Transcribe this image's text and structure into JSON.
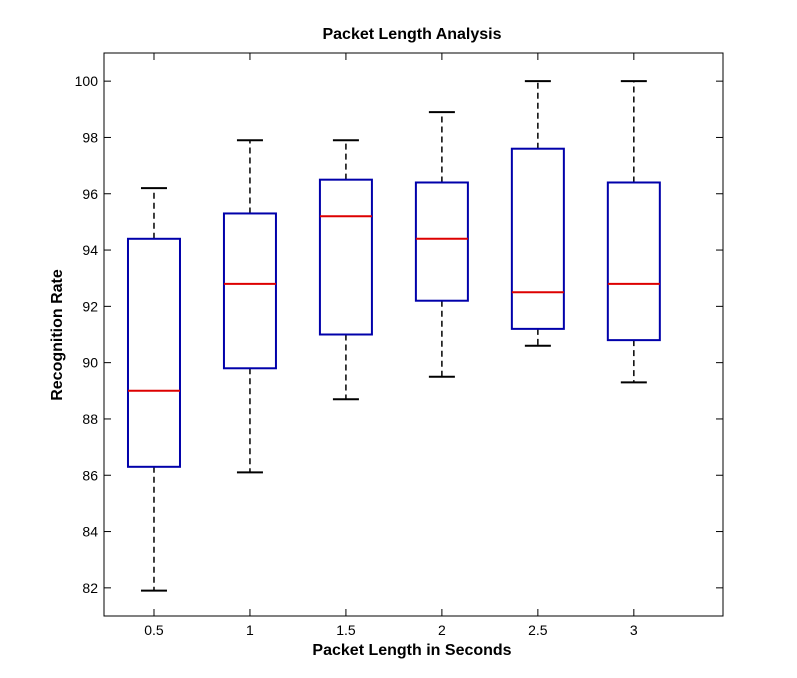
{
  "chart_data": {
    "type": "boxplot",
    "title": "Packet Length Analysis",
    "xlabel": "Packet Length in Seconds",
    "ylabel": "Recognition Rate",
    "categories": [
      "0.5",
      "1",
      "1.5",
      "2",
      "2.5",
      "3"
    ],
    "ylim": [
      81,
      101
    ],
    "yticks": [
      82,
      84,
      86,
      88,
      90,
      92,
      94,
      96,
      98,
      100
    ],
    "grid": false,
    "boxes": [
      {
        "category": "0.5",
        "whisker_low": 81.9,
        "q1": 86.3,
        "median": 89.0,
        "q3": 94.4,
        "whisker_high": 96.2
      },
      {
        "category": "1",
        "whisker_low": 86.1,
        "q1": 89.8,
        "median": 92.8,
        "q3": 95.3,
        "whisker_high": 97.9
      },
      {
        "category": "1.5",
        "whisker_low": 88.7,
        "q1": 91.0,
        "median": 95.2,
        "q3": 96.5,
        "whisker_high": 97.9
      },
      {
        "category": "2",
        "whisker_low": 89.5,
        "q1": 92.2,
        "median": 94.4,
        "q3": 96.4,
        "whisker_high": 98.9
      },
      {
        "category": "2.5",
        "whisker_low": 90.6,
        "q1": 91.2,
        "median": 92.5,
        "q3": 97.6,
        "whisker_high": 100.0
      },
      {
        "category": "3",
        "whisker_low": 89.3,
        "q1": 90.8,
        "median": 92.8,
        "q3": 96.4,
        "whisker_high": 100.0
      }
    ],
    "colors": {
      "box": "#0000aa",
      "median": "#dd0000",
      "whisker": "#000000",
      "axes": "#000000"
    }
  }
}
